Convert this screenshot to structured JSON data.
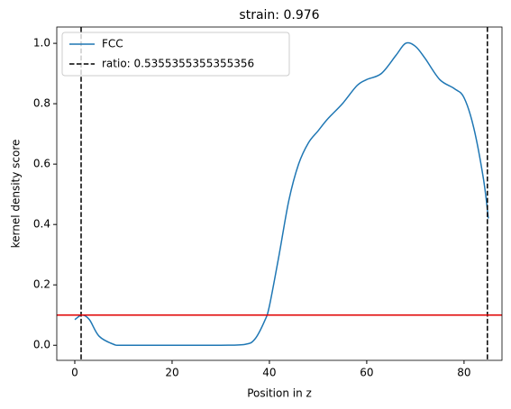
{
  "chart_data": {
    "type": "line",
    "title": "strain: 0.976",
    "x_label": "Position in z",
    "y_label": "kernel density score",
    "xlim": [
      -3.7,
      87.8
    ],
    "ylim": [
      -0.05,
      1.054
    ],
    "xticks": [
      0,
      20,
      40,
      60,
      80
    ],
    "yticks": [
      {
        "value": 0,
        "label": "0.0"
      },
      {
        "value": 0.2,
        "label": "0.2"
      },
      {
        "value": 0.4,
        "label": "0.4"
      },
      {
        "value": 0.6,
        "label": "0.6"
      },
      {
        "value": 0.8,
        "label": "0.8"
      },
      {
        "value": 1,
        "label": "1.0"
      }
    ],
    "series": [
      {
        "name": "FCC",
        "color": "#1f77b4",
        "x": [
          0,
          1.5,
          3,
          5,
          8,
          10,
          20,
          30,
          35,
          37,
          39,
          40,
          42,
          44,
          46,
          48,
          50,
          52,
          55,
          58,
          60,
          63,
          66,
          68,
          70,
          72,
          75,
          78,
          80,
          82,
          84,
          85
        ],
        "values": [
          0.085,
          0.1,
          0.085,
          0.03,
          0.003,
          0,
          0,
          0,
          0.003,
          0.02,
          0.08,
          0.13,
          0.3,
          0.48,
          0.6,
          0.67,
          0.71,
          0.75,
          0.8,
          0.86,
          0.88,
          0.9,
          0.96,
          1.0,
          0.99,
          0.95,
          0.88,
          0.85,
          0.82,
          0.72,
          0.55,
          0.42
        ]
      }
    ],
    "vlines": {
      "name": "ratio: 0.5355355355355356",
      "color": "#000000",
      "values": [
        1.3,
        84.8
      ]
    },
    "hline": {
      "value": 0.1,
      "color": "#e00000"
    },
    "legend": "upper left"
  }
}
